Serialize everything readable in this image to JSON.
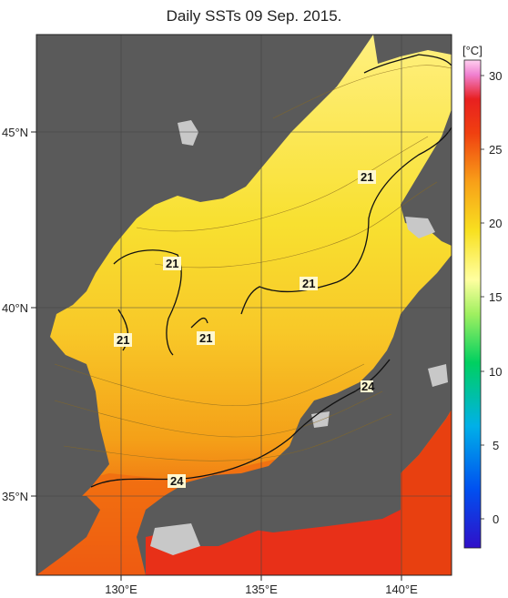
{
  "title": "Daily SSTs 09 Sep. 2015.",
  "colorbar": {
    "unit": "[°C]",
    "ticks": [
      "30",
      "25",
      "20",
      "15",
      "10",
      "5",
      "0"
    ]
  },
  "axes": {
    "lat_ticks": [
      "45°N",
      "40°N",
      "35°N"
    ],
    "lon_ticks": [
      "130°E",
      "135°E",
      "140°E"
    ]
  },
  "contour_labels": [
    "21",
    "21",
    "21",
    "21",
    "21",
    "24",
    "24"
  ],
  "colors": {
    "land": "#5a5a5a",
    "ice_or_missing": "#c8c8c8",
    "sst_21": "#f8e030",
    "sst_23": "#f8b020",
    "sst_25": "#f06010",
    "sst_27": "#e83018"
  }
}
